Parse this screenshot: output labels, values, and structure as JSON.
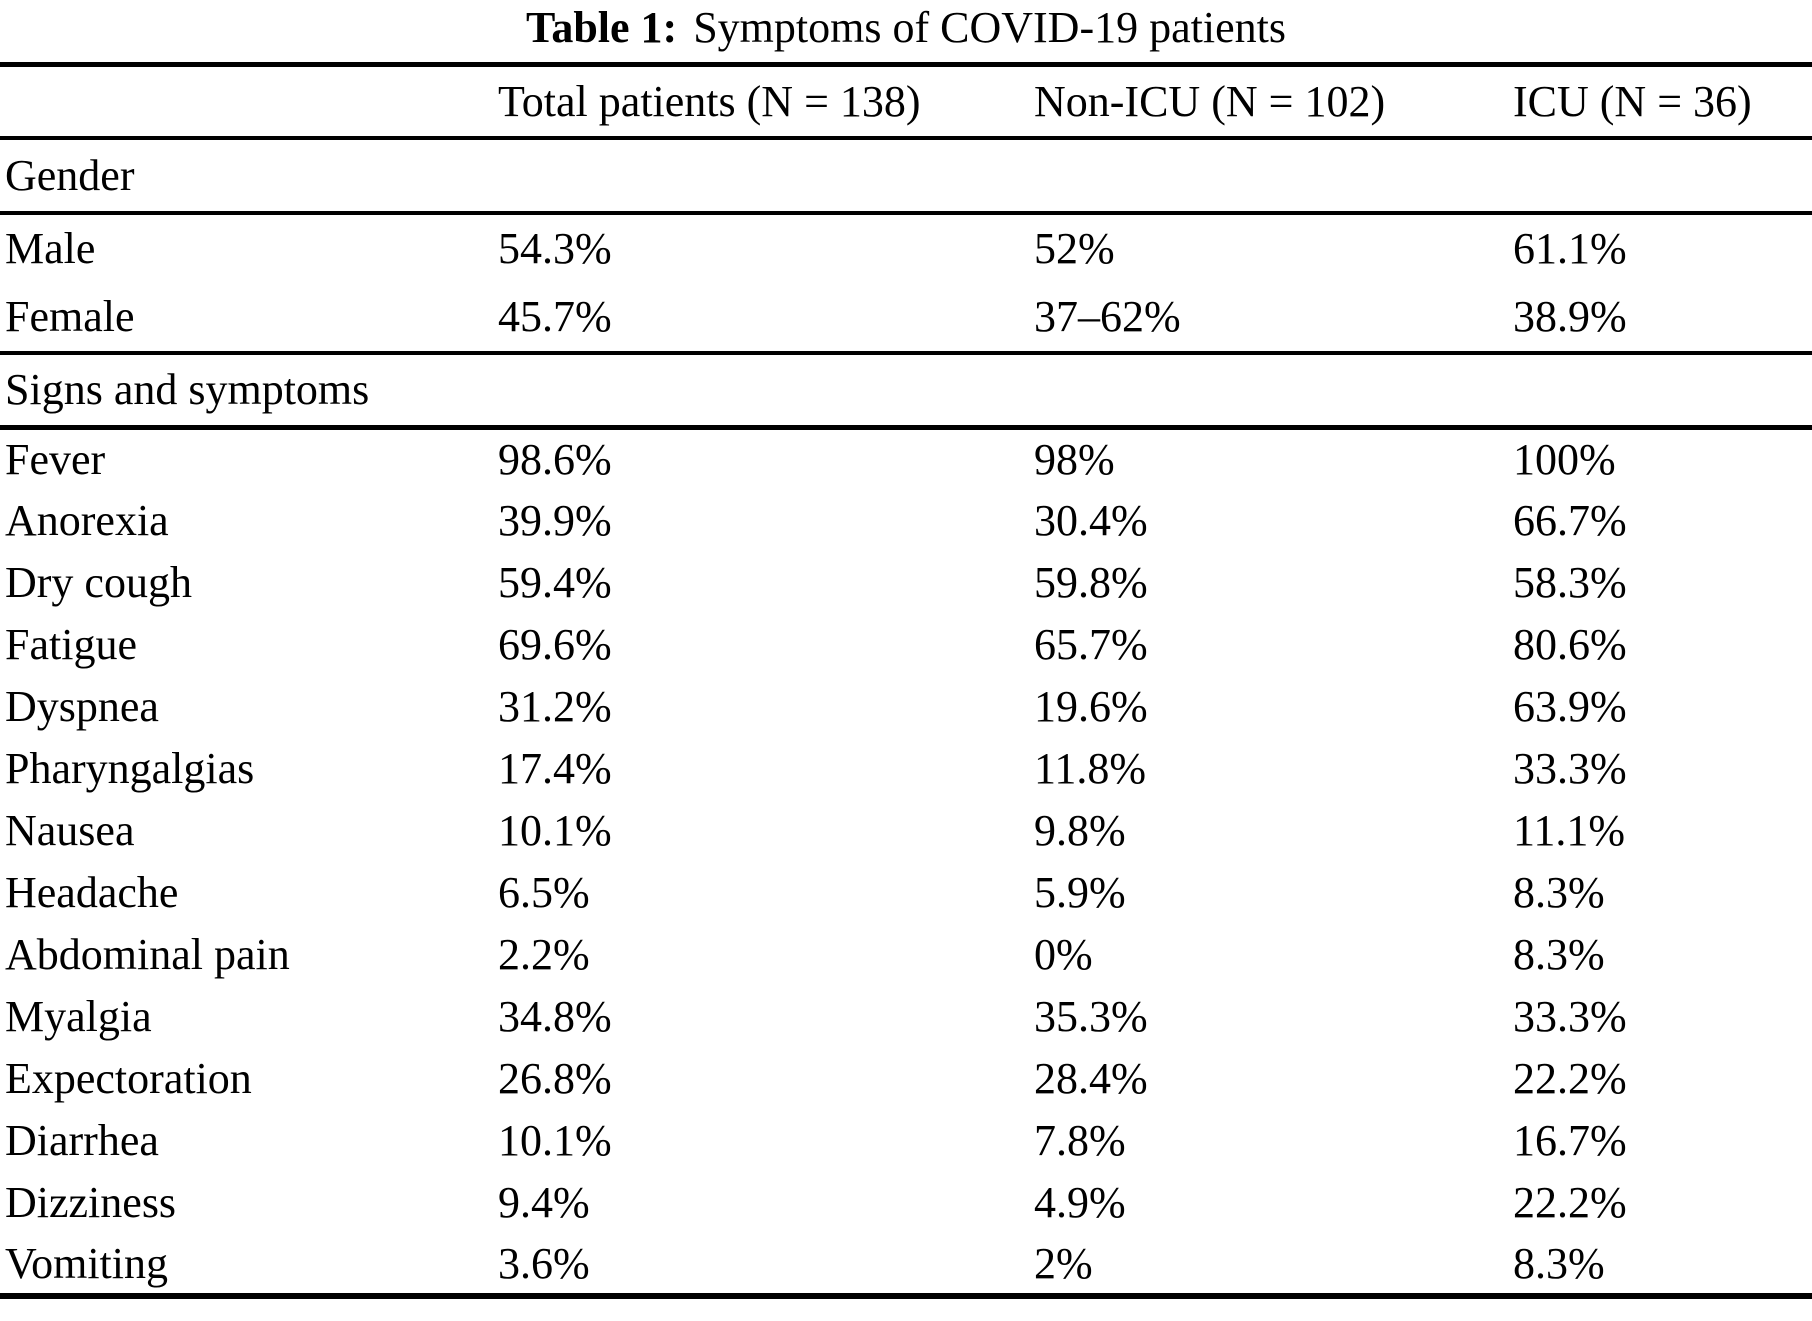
{
  "caption": {
    "label": "Table 1:",
    "text": "Symptoms of COVID-19 patients"
  },
  "table": {
    "columns": [
      "",
      "Total patients (N = 138)",
      "Non-ICU (N = 102)",
      "ICU (N = 36)"
    ],
    "sections": [
      {
        "id": "gender",
        "header": "Gender",
        "rows": [
          [
            "Male",
            "54.3%",
            "52%",
            "61.1%"
          ],
          [
            "Female",
            "45.7%",
            "37–62%",
            "38.9%"
          ]
        ]
      },
      {
        "id": "signs-and-symptoms",
        "header": "Signs and symptoms",
        "rows": [
          [
            "Fever",
            "98.6%",
            "98%",
            "100%"
          ],
          [
            "Anorexia",
            "39.9%",
            "30.4%",
            "66.7%"
          ],
          [
            "Dry cough",
            "59.4%",
            "59.8%",
            "58.3%"
          ],
          [
            "Fatigue",
            "69.6%",
            "65.7%",
            "80.6%"
          ],
          [
            "Dyspnea",
            "31.2%",
            "19.6%",
            "63.9%"
          ],
          [
            "Pharyngalgias",
            "17.4%",
            "11.8%",
            "33.3%"
          ],
          [
            "Nausea",
            "10.1%",
            "9.8%",
            "11.1%"
          ],
          [
            "Headache",
            "6.5%",
            "5.9%",
            "8.3%"
          ],
          [
            "Abdominal pain",
            "2.2%",
            "0%",
            "8.3%"
          ],
          [
            "Myalgia",
            "34.8%",
            "35.3%",
            "33.3%"
          ],
          [
            "Expectoration",
            "26.8%",
            "28.4%",
            "22.2%"
          ],
          [
            "Diarrhea",
            "10.1%",
            "7.8%",
            "16.7%"
          ],
          [
            "Dizziness",
            "9.4%",
            "4.9%",
            "22.2%"
          ],
          [
            "Vomiting",
            "3.6%",
            "2%",
            "8.3%"
          ]
        ]
      }
    ]
  },
  "colors": {
    "text": "#000000",
    "background": "#ffffff",
    "rule": "#000000"
  }
}
